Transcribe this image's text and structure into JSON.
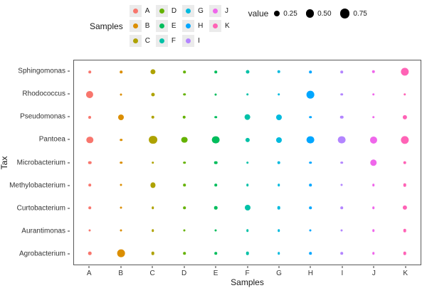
{
  "legend": {
    "samples_title": "Samples",
    "value_title": "value"
  },
  "chart_data": {
    "type": "scatter",
    "subtype": "bubble",
    "title": "",
    "xlabel": "Samples",
    "ylabel": "Tax",
    "grid": false,
    "legend_position": "top",
    "x_categories": [
      "A",
      "B",
      "C",
      "D",
      "E",
      "F",
      "G",
      "H",
      "I",
      "J",
      "K"
    ],
    "y_categories": [
      "Sphingomonas",
      "Rhodococcus",
      "Pseudomonas",
      "Pantoea",
      "Microbacterium",
      "Methylobacterium",
      "Curtobacterium",
      "Aurantimonas",
      "Agrobacterium"
    ],
    "size_legend": {
      "title": "value",
      "values": [
        0.25,
        0.5,
        0.75
      ]
    },
    "series": [
      {
        "name": "A",
        "color": "#F8766D",
        "values": [
          0.05,
          0.4,
          0.06,
          0.35,
          0.08,
          0.05,
          0.05,
          0.03,
          0.08
        ]
      },
      {
        "name": "B",
        "color": "#DB8E00",
        "values": [
          0.05,
          0.03,
          0.25,
          0.05,
          0.05,
          0.03,
          0.03,
          0.03,
          0.45
        ]
      },
      {
        "name": "C",
        "color": "#AEA200",
        "values": [
          0.2,
          0.1,
          0.08,
          0.55,
          0.05,
          0.2,
          0.05,
          0.05,
          0.08
        ]
      },
      {
        "name": "D",
        "color": "#64B200",
        "values": [
          0.05,
          0.05,
          0.08,
          0.3,
          0.05,
          0.05,
          0.05,
          0.03,
          0.05
        ]
      },
      {
        "name": "E",
        "color": "#00BD5C",
        "values": [
          0.05,
          0.03,
          0.05,
          0.45,
          0.08,
          0.05,
          0.08,
          0.03,
          0.05
        ]
      },
      {
        "name": "F",
        "color": "#00C1A7",
        "values": [
          0.1,
          0.05,
          0.3,
          0.15,
          0.05,
          0.05,
          0.25,
          0.05,
          0.08
        ]
      },
      {
        "name": "G",
        "color": "#00BADE",
        "values": [
          0.08,
          0.05,
          0.25,
          0.25,
          0.08,
          0.05,
          0.08,
          0.05,
          0.05
        ]
      },
      {
        "name": "H",
        "color": "#00A6FF",
        "values": [
          0.05,
          0.45,
          0.05,
          0.45,
          0.05,
          0.05,
          0.05,
          0.03,
          0.05
        ]
      },
      {
        "name": "I",
        "color": "#B385FF",
        "values": [
          0.05,
          0.05,
          0.08,
          0.45,
          0.05,
          0.03,
          0.05,
          0.03,
          0.05
        ]
      },
      {
        "name": "J",
        "color": "#EF67EB",
        "values": [
          0.08,
          0.05,
          0.05,
          0.4,
          0.35,
          0.05,
          0.05,
          0.05,
          0.05
        ]
      },
      {
        "name": "K",
        "color": "#FF63B6",
        "values": [
          0.5,
          0.05,
          0.15,
          0.5,
          0.08,
          0.08,
          0.15,
          0.08,
          0.08
        ]
      }
    ]
  }
}
